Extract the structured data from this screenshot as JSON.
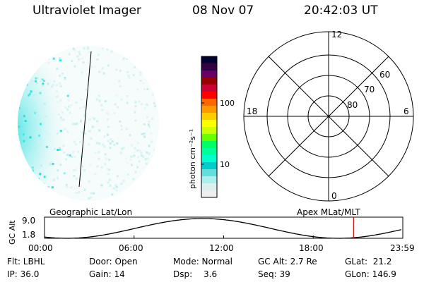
{
  "header": {
    "instrument": "Ultraviolet Imager",
    "date": "08 Nov 07",
    "time": "20:42:03 UT"
  },
  "colorbar": {
    "label": "photon cm⁻²s⁻¹",
    "ticks": [
      "100",
      "10"
    ],
    "colors": [
      "#000033",
      "#330044",
      "#660066",
      "#990000",
      "#cc0033",
      "#ff0000",
      "#ff6600",
      "#ff9900",
      "#ffcc00",
      "#ffff00",
      "#ccff00",
      "#66ff00",
      "#00ff66",
      "#00ff99",
      "#00ffcc",
      "#00cccc",
      "#66dddd",
      "#aaeeee",
      "#ddeeee",
      "#eeeeee"
    ]
  },
  "polar": {
    "mlt_labels": {
      "top": "12",
      "left": "18",
      "right": "6",
      "bottom": "0"
    },
    "lat_labels": [
      "60",
      "70",
      "80"
    ]
  },
  "orbit": {
    "left_title": "Geographic Lat/Lon",
    "right_title": "Apex MLat/MLT",
    "ylabel": "GC Alt",
    "yticks": [
      "9.0",
      "1.8"
    ],
    "xticks": [
      "00:00",
      "06:00",
      "12:00",
      "18:00",
      "23:59"
    ],
    "current_marker_hour": 20.7,
    "marker_color": "#cc0000"
  },
  "footer": {
    "flt": "Flt: LBHL",
    "door": "Door: Open",
    "mode": "Mode: Normal",
    "gcalt": "GC Alt: 2.7 Re",
    "glat": "GLat:  21.2",
    "ip": "IP: 36.0",
    "gain": "Gain: 14",
    "dsp_label": "Dsp:",
    "dsp_value": "3.6",
    "seq": "Seq: 39",
    "glon": "GLon: 146.9"
  }
}
